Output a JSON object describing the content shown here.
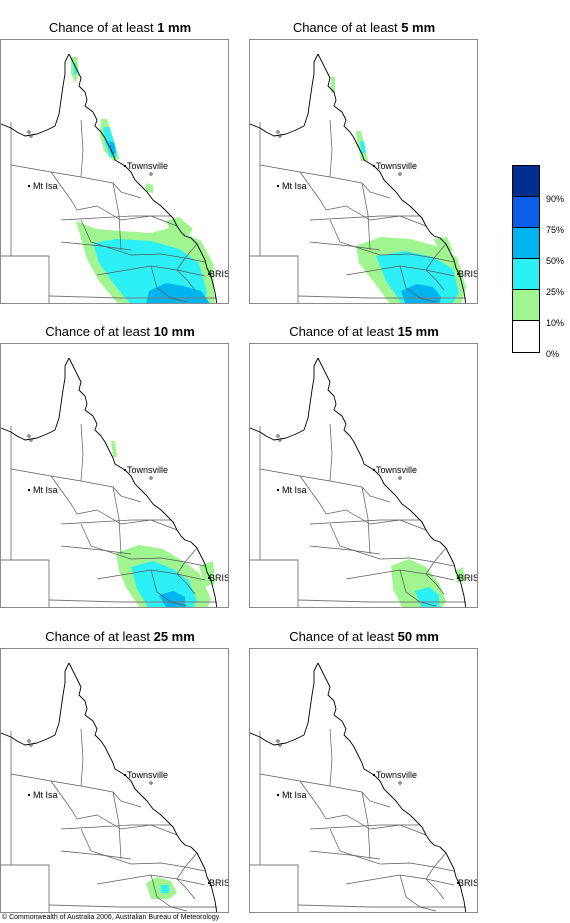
{
  "panels": [
    {
      "title_prefix": "Chance of at least ",
      "amount": "1 mm",
      "regions": [
        {
          "level": 1,
          "pts": [
            [
              75,
              220
            ],
            [
              95,
              228
            ],
            [
              120,
              230
            ],
            [
              150,
              232
            ],
            [
              172,
              226
            ],
            [
              200,
              240
            ],
            [
              212,
              262
            ],
            [
              214,
              304
            ],
            [
              118,
              304
            ],
            [
              98,
              280
            ],
            [
              86,
              258
            ]
          ]
        },
        {
          "level": 2,
          "pts": [
            [
              92,
              242
            ],
            [
              115,
              238
            ],
            [
              150,
              240
            ],
            [
              178,
              248
            ],
            [
              198,
              262
            ],
            [
              206,
              292
            ],
            [
              200,
              304
            ],
            [
              130,
              304
            ],
            [
              112,
              282
            ],
            [
              98,
              262
            ]
          ]
        },
        {
          "level": 3,
          "pts": [
            [
              148,
              290
            ],
            [
              165,
              282
            ],
            [
              182,
              285
            ],
            [
              200,
              290
            ],
            [
              210,
              304
            ],
            [
              145,
              304
            ]
          ]
        },
        {
          "level": 1,
          "pts": [
            [
              165,
              220
            ],
            [
              178,
              216
            ],
            [
              192,
              228
            ],
            [
              186,
              236
            ],
            [
              170,
              232
            ]
          ]
        },
        {
          "level": 1,
          "pts": [
            [
              145,
              182
            ],
            [
              152,
              184
            ],
            [
              152,
              192
            ],
            [
              145,
              190
            ]
          ]
        },
        {
          "level": 1,
          "pts": [
            [
              100,
              118
            ],
            [
              106,
              118
            ],
            [
              114,
              142
            ],
            [
              118,
              158
            ],
            [
              112,
              160
            ],
            [
              103,
              150
            ],
            [
              99,
              134
            ]
          ]
        },
        {
          "level": 2,
          "pts": [
            [
              102,
              126
            ],
            [
              108,
              126
            ],
            [
              114,
              144
            ],
            [
              116,
              156
            ],
            [
              109,
              156
            ],
            [
              104,
              142
            ]
          ]
        },
        {
          "level": 3,
          "pts": [
            [
              108,
              140
            ],
            [
              113,
              142
            ],
            [
              115,
              152
            ],
            [
              110,
              153
            ]
          ]
        },
        {
          "level": 1,
          "pts": [
            [
              70,
              56
            ],
            [
              76,
              56
            ],
            [
              78,
              72
            ],
            [
              74,
              82
            ],
            [
              70,
              72
            ]
          ]
        },
        {
          "level": 2,
          "pts": [
            [
              72,
              62
            ],
            [
              75,
              62
            ],
            [
              76,
              72
            ],
            [
              73,
              74
            ]
          ]
        }
      ]
    },
    {
      "title_prefix": "Chance of at least ",
      "amount": "5 mm",
      "regions": [
        {
          "level": 1,
          "pts": [
            [
              355,
              245
            ],
            [
              380,
              236
            ],
            [
              410,
              238
            ],
            [
              438,
              246
            ],
            [
              456,
              256
            ],
            [
              465,
              286
            ],
            [
              460,
              304
            ],
            [
              390,
              304
            ],
            [
              372,
              280
            ],
            [
              358,
              262
            ]
          ]
        },
        {
          "level": 2,
          "pts": [
            [
              375,
              255
            ],
            [
              405,
              250
            ],
            [
              432,
              256
            ],
            [
              452,
              268
            ],
            [
              458,
              292
            ],
            [
              450,
              304
            ],
            [
              402,
              304
            ],
            [
              385,
              280
            ]
          ]
        },
        {
          "level": 3,
          "pts": [
            [
              400,
              290
            ],
            [
              416,
              283
            ],
            [
              432,
              286
            ],
            [
              440,
              296
            ],
            [
              438,
              304
            ],
            [
              405,
              304
            ]
          ]
        },
        {
          "level": 1,
          "pts": [
            [
              432,
              238
            ],
            [
              446,
              236
            ],
            [
              452,
              250
            ],
            [
              440,
              252
            ]
          ]
        },
        {
          "level": 1,
          "pts": [
            [
              355,
              130
            ],
            [
              360,
              130
            ],
            [
              364,
              146
            ],
            [
              367,
              160
            ],
            [
              360,
              160
            ],
            [
              357,
              146
            ]
          ]
        },
        {
          "level": 2,
          "pts": [
            [
              359,
              140
            ],
            [
              363,
              140
            ],
            [
              365,
              152
            ],
            [
              361,
              152
            ]
          ]
        },
        {
          "level": 1,
          "pts": [
            [
              330,
              76
            ],
            [
              334,
              76
            ],
            [
              334,
              92
            ],
            [
              330,
              92
            ]
          ]
        }
      ]
    },
    {
      "title_prefix": "Chance of at least ",
      "amount": "10 mm",
      "regions": [
        {
          "level": 1,
          "pts": [
            [
              115,
              552
            ],
            [
              138,
              544
            ],
            [
              162,
              548
            ],
            [
              182,
              560
            ],
            [
              198,
              572
            ],
            [
              210,
              598
            ],
            [
              206,
              608
            ],
            [
              140,
              608
            ],
            [
              126,
              588
            ],
            [
              118,
              570
            ]
          ]
        },
        {
          "level": 2,
          "pts": [
            [
              130,
              566
            ],
            [
              152,
              560
            ],
            [
              172,
              568
            ],
            [
              188,
              580
            ],
            [
              196,
              600
            ],
            [
              190,
              608
            ],
            [
              148,
              608
            ],
            [
              136,
              588
            ]
          ]
        },
        {
          "level": 3,
          "pts": [
            [
              158,
              594
            ],
            [
              172,
              590
            ],
            [
              184,
              596
            ],
            [
              184,
              606
            ],
            [
              165,
              606
            ]
          ]
        },
        {
          "level": 1,
          "pts": [
            [
              198,
              565
            ],
            [
              212,
              560
            ],
            [
              214,
              582
            ],
            [
              204,
              586
            ]
          ]
        },
        {
          "level": 1,
          "pts": [
            [
              110,
              440
            ],
            [
              114,
              440
            ],
            [
              116,
              456
            ],
            [
              112,
              456
            ]
          ]
        }
      ]
    },
    {
      "title_prefix": "Chance of at least ",
      "amount": "15 mm",
      "regions": [
        {
          "level": 1,
          "pts": [
            [
              390,
              565
            ],
            [
              408,
              558
            ],
            [
              425,
              566
            ],
            [
              438,
              582
            ],
            [
              445,
              600
            ],
            [
              440,
              608
            ],
            [
              402,
              608
            ],
            [
              392,
              588
            ]
          ]
        },
        {
          "level": 2,
          "pts": [
            [
              414,
              590
            ],
            [
              428,
              586
            ],
            [
              438,
              594
            ],
            [
              438,
              606
            ],
            [
              420,
              606
            ]
          ]
        },
        {
          "level": 1,
          "pts": [
            [
              454,
              570
            ],
            [
              462,
              566
            ],
            [
              464,
              580
            ],
            [
              456,
              582
            ]
          ]
        }
      ]
    },
    {
      "title_prefix": "Chance of at least ",
      "amount": "25 mm",
      "regions": [
        {
          "level": 1,
          "pts": [
            [
              145,
              882
            ],
            [
              156,
              876
            ],
            [
              170,
              880
            ],
            [
              176,
              892
            ],
            [
              168,
              898
            ],
            [
              150,
              898
            ]
          ]
        },
        {
          "level": 2,
          "pts": [
            [
              160,
              884
            ],
            [
              168,
              884
            ],
            [
              168,
              892
            ],
            [
              160,
              892
            ]
          ]
        }
      ]
    },
    {
      "title_prefix": "Chance of at least ",
      "amount": "50 mm",
      "regions": []
    }
  ],
  "places": {
    "townsville": "Townsville",
    "mt_isa": "Mt Isa",
    "bris": "BRIS"
  },
  "legend": {
    "colors": [
      "#002f8f",
      "#0a5ee8",
      "#00b4f0",
      "#2cf0f5",
      "#a0f590",
      "#ffffff"
    ],
    "labels": [
      "90%",
      "75%",
      "50%",
      "25%",
      "10%",
      "0%"
    ]
  },
  "copyright": "© Commonwealth of Australia 2006, Australian Bureau of Meteorology"
}
